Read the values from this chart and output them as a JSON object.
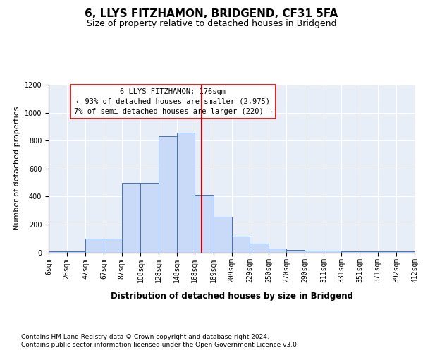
{
  "title": "6, LLYS FITZHAMON, BRIDGEND, CF31 5FA",
  "subtitle": "Size of property relative to detached houses in Bridgend",
  "xlabel": "Distribution of detached houses by size in Bridgend",
  "ylabel": "Number of detached properties",
  "footnote1": "Contains HM Land Registry data © Crown copyright and database right 2024.",
  "footnote2": "Contains public sector information licensed under the Open Government Licence v3.0.",
  "bin_edges": [
    6,
    26,
    47,
    67,
    87,
    108,
    128,
    148,
    168,
    189,
    209,
    229,
    250,
    270,
    290,
    311,
    331,
    351,
    371,
    392,
    412
  ],
  "bin_labels": [
    "6sqm",
    "26sqm",
    "47sqm",
    "67sqm",
    "87sqm",
    "108sqm",
    "128sqm",
    "148sqm",
    "168sqm",
    "189sqm",
    "209sqm",
    "229sqm",
    "250sqm",
    "270sqm",
    "290sqm",
    "311sqm",
    "331sqm",
    "351sqm",
    "371sqm",
    "392sqm",
    "412sqm"
  ],
  "bar_heights": [
    10,
    10,
    100,
    100,
    500,
    500,
    830,
    855,
    410,
    255,
    115,
    65,
    30,
    20,
    15,
    15,
    10,
    10,
    10,
    10
  ],
  "bar_color": "#c9daf8",
  "bar_edge_color": "#4472c4",
  "vline_x": 176,
  "vline_color": "#cc0000",
  "annotation_line1": "6 LLYS FITZHAMON: 176sqm",
  "annotation_line2": "← 93% of detached houses are smaller (2,975)",
  "annotation_line3": "7% of semi-detached houses are larger (220) →",
  "annotation_box_facecolor": "#ffffff",
  "annotation_box_edgecolor": "#cc0000",
  "ylim_max": 1200,
  "yticks": [
    0,
    200,
    400,
    600,
    800,
    1000,
    1200
  ],
  "bg_color": "#e8eef8",
  "grid_color": "#ffffff",
  "title_fontsize": 11,
  "subtitle_fontsize": 9,
  "ylabel_fontsize": 8,
  "xlabel_fontsize": 8.5,
  "tick_fontsize": 7,
  "annotation_fontsize": 7.5,
  "footnote_fontsize": 6.5
}
